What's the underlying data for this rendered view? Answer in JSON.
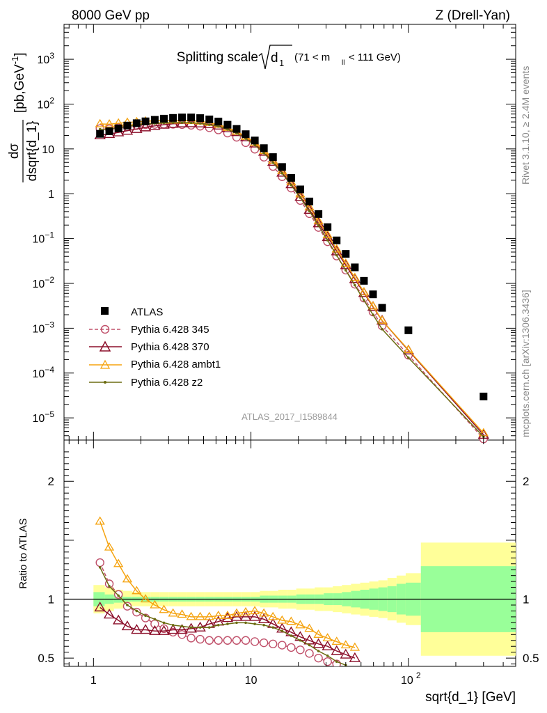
{
  "header": {
    "left": "8000 GeV pp",
    "right": "Z (Drell-Yan)"
  },
  "title": {
    "prefix": "Splitting scale",
    "sym": "d",
    "sym_sub": "1",
    "cut_open": "(71 < m",
    "cut_sub": "ll",
    "cut_close": "< 111 GeV)"
  },
  "analysis_id": "ATLAS_2017_I1589844",
  "side_labels": {
    "rivet": "Rivet 3.1.10, ≥ 2.4M events",
    "mcplots": "mcplots.cern.ch [arXiv:1306.3436]"
  },
  "axes": {
    "main_ylabel_num": "dσ",
    "main_ylabel_den": "dsqrt{d_1}",
    "main_ylabel_unit": "[pb,GeV",
    "main_ylabel_unit_exp": "-1",
    "main_ylabel_unit_close": "]",
    "ratio_ylabel": "Ratio to ATLAS",
    "xlabel": "sqrt{d_1} [GeV]",
    "x_tick_labels": [
      "1",
      "10",
      "10"
    ],
    "x_tick_sup": "2",
    "y_tick_labels": [
      {
        "base": "10",
        "exp": "3"
      },
      {
        "base": "10",
        "exp": "2"
      },
      {
        "base": "10",
        "exp": ""
      },
      {
        "base": "1",
        "exp": ""
      },
      {
        "base": "10",
        "exp": "−1"
      },
      {
        "base": "10",
        "exp": "−2"
      },
      {
        "base": "10",
        "exp": "−3"
      },
      {
        "base": "10",
        "exp": "−4"
      },
      {
        "base": "10",
        "exp": "−5"
      }
    ],
    "ratio_tick_labels": [
      "2",
      "1",
      "0.5"
    ]
  },
  "legend": {
    "items": [
      {
        "label": "ATLAS"
      },
      {
        "label": "Pythia 6.428 345"
      },
      {
        "label": "Pythia 6.428 370"
      },
      {
        "label": "Pythia 6.428 ambt1"
      },
      {
        "label": "Pythia 6.428 z2"
      }
    ]
  },
  "chart_data": {
    "type": "scatter",
    "x_scale": "log",
    "y_scale": "log",
    "xlim": [
      0.65,
      480
    ],
    "ylim": [
      3.2e-06,
      6000
    ],
    "ratio_ylim": [
      0.43,
      2.35
    ],
    "ratio_ylabel": "Ratio to ATLAS",
    "colors": {
      "data": "#000000",
      "p345": "#c0506a",
      "p370": "#8b0f2a",
      "ambt1": "#f5a30f",
      "z2": "#6b6b10",
      "band_inner": "#99ff99",
      "band_outer": "#ffff99"
    },
    "x": [
      1.1,
      1.26,
      1.44,
      1.64,
      1.88,
      2.14,
      2.45,
      2.8,
      3.2,
      3.65,
      4.17,
      4.76,
      5.44,
      6.21,
      7.1,
      8.11,
      9.26,
      10.58,
      12.08,
      13.8,
      15.77,
      18.01,
      20.57,
      23.5,
      26.84,
      30.66,
      35.02,
      40.0,
      45.69,
      52.19,
      59.61,
      68.09,
      100.0,
      300.0
    ],
    "series": [
      {
        "name": "ATLAS",
        "values": [
          21.7,
          24.8,
          28.7,
          33.2,
          37.5,
          41.2,
          44.5,
          47.3,
          49.2,
          50.3,
          50.3,
          48.7,
          45.5,
          40.8,
          34.6,
          27.9,
          21.3,
          15.4,
          10.4,
          6.57,
          3.95,
          2.26,
          1.25,
          0.672,
          0.353,
          0.18,
          0.091,
          0.0455,
          0.0228,
          0.0114,
          0.0057,
          0.00285,
          0.0009,
          3e-05
        ]
      },
      {
        "name": "Pythia 6.428 345",
        "values": [
          28.4,
          28.0,
          29.7,
          31.2,
          33.3,
          34.6,
          35.2,
          35.5,
          35.5,
          35.0,
          33.8,
          32.1,
          29.7,
          26.5,
          22.6,
          18.2,
          13.8,
          9.85,
          6.54,
          4.06,
          2.4,
          1.34,
          0.71,
          0.36,
          0.177,
          0.085,
          0.0407,
          0.0198,
          0.0096,
          0.0047,
          0.0023,
          0.00113,
          0.00025,
          3.4e-06
        ]
      },
      {
        "name": "Pythia 6.428 370",
        "values": [
          20.1,
          21.5,
          23.4,
          25.4,
          27.9,
          30.3,
          32.6,
          34.7,
          36.3,
          37.3,
          37.5,
          37.1,
          35.8,
          33.2,
          28.9,
          23.8,
          18.2,
          13.2,
          8.64,
          5.17,
          2.96,
          1.63,
          0.852,
          0.437,
          0.219,
          0.108,
          0.052,
          0.0255,
          0.0125,
          0.0061,
          0.003,
          0.00148,
          0.00032,
          4.2e-06
        ]
      },
      {
        "name": "Pythia 6.428 ambt1",
        "values": [
          36.0,
          35.6,
          37.4,
          38.9,
          40.1,
          41.4,
          42.4,
          43.1,
          43.4,
          43.5,
          42.6,
          41.2,
          38.6,
          35.0,
          29.9,
          24.5,
          18.9,
          13.8,
          9.1,
          5.55,
          3.25,
          1.83,
          0.981,
          0.502,
          0.248,
          0.121,
          0.058,
          0.0279,
          0.0134,
          0.0064,
          0.0031,
          0.00149,
          0.00033,
          4.6e-06
        ]
      },
      {
        "name": "Pythia 6.428 z2",
        "values": [
          27.5,
          27.5,
          29.5,
          31.6,
          33.8,
          35.6,
          37.0,
          37.9,
          38.5,
          38.6,
          38.2,
          37.0,
          34.8,
          31.8,
          27.3,
          22.3,
          17.0,
          12.2,
          8.07,
          4.95,
          2.86,
          1.56,
          0.815,
          0.41,
          0.196,
          0.092,
          0.0423,
          0.0196,
          0.0091,
          0.0042,
          0.002,
          0.00095,
          0.00022,
          3.8e-06
        ]
      }
    ],
    "ratio_series": [
      {
        "name": "Pythia 6.428 345",
        "values": [
          1.31,
          1.13,
          1.04,
          0.94,
          0.89,
          0.84,
          0.79,
          0.75,
          0.72,
          0.7,
          0.67,
          0.66,
          0.65,
          0.65,
          0.65,
          0.65,
          0.65,
          0.64,
          0.63,
          0.62,
          0.61,
          0.59,
          0.57,
          0.54,
          0.5,
          0.47,
          0.45
        ]
      },
      {
        "name": "Pythia 6.428 370",
        "values": [
          0.93,
          0.87,
          0.82,
          0.77,
          0.74,
          0.74,
          0.73,
          0.73,
          0.74,
          0.74,
          0.75,
          0.76,
          0.79,
          0.81,
          0.84,
          0.85,
          0.85,
          0.85,
          0.83,
          0.79,
          0.75,
          0.72,
          0.68,
          0.65,
          0.62,
          0.6,
          0.56,
          0.53,
          0.5
        ]
      },
      {
        "name": "Pythia 6.428 ambt1",
        "values": [
          1.66,
          1.44,
          1.3,
          1.17,
          1.07,
          1.0,
          0.95,
          0.91,
          0.88,
          0.87,
          0.85,
          0.85,
          0.85,
          0.86,
          0.86,
          0.88,
          0.89,
          0.9,
          0.88,
          0.85,
          0.82,
          0.81,
          0.78,
          0.75,
          0.7,
          0.67,
          0.64,
          0.61,
          0.59
        ]
      },
      {
        "name": "Pythia 6.428 z2",
        "values": [
          1.27,
          1.11,
          1.03,
          0.95,
          0.9,
          0.86,
          0.83,
          0.8,
          0.78,
          0.77,
          0.76,
          0.76,
          0.76,
          0.78,
          0.79,
          0.8,
          0.8,
          0.79,
          0.78,
          0.76,
          0.73,
          0.69,
          0.65,
          0.61,
          0.56,
          0.52,
          0.47,
          0.44
        ]
      }
    ],
    "ratio_band": {
      "x_edges": [
        1.0,
        1.18,
        1.35,
        1.54,
        1.76,
        2.01,
        2.3,
        2.63,
        3.0,
        3.43,
        3.92,
        4.48,
        5.12,
        5.85,
        6.68,
        7.64,
        8.73,
        9.97,
        11.4,
        13.0,
        14.9,
        17.0,
        19.4,
        22.2,
        25.4,
        29.0,
        33.1,
        37.8,
        43.2,
        49.4,
        56.4,
        64.4,
        73.6,
        84.1,
        96.1,
        120.0,
        480.0
      ],
      "inner_half_width": [
        0.06,
        0.04,
        0.03,
        0.02,
        0.02,
        0.02,
        0.02,
        0.02,
        0.02,
        0.02,
        0.02,
        0.02,
        0.02,
        0.02,
        0.02,
        0.02,
        0.02,
        0.02,
        0.03,
        0.03,
        0.03,
        0.03,
        0.04,
        0.04,
        0.04,
        0.05,
        0.05,
        0.06,
        0.07,
        0.08,
        0.09,
        0.1,
        0.11,
        0.13,
        0.14,
        0.28
      ],
      "outer_half_width": [
        0.12,
        0.1,
        0.08,
        0.07,
        0.06,
        0.06,
        0.06,
        0.06,
        0.06,
        0.06,
        0.06,
        0.06,
        0.06,
        0.06,
        0.06,
        0.06,
        0.06,
        0.06,
        0.07,
        0.07,
        0.08,
        0.08,
        0.09,
        0.09,
        0.1,
        0.1,
        0.11,
        0.12,
        0.13,
        0.14,
        0.15,
        0.16,
        0.18,
        0.2,
        0.22,
        0.48
      ]
    }
  }
}
